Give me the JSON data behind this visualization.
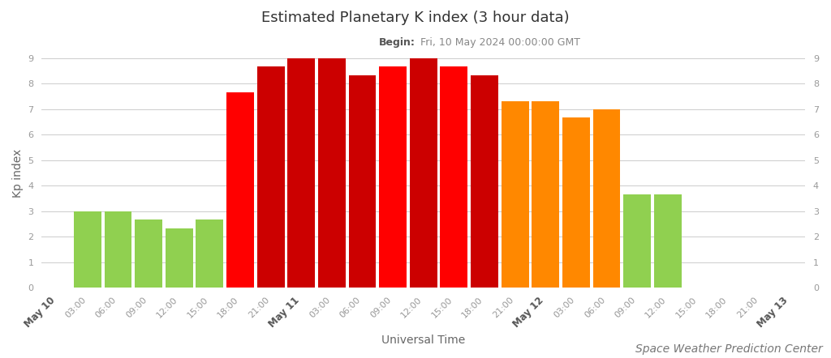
{
  "title": "Estimated Planetary K index (3 hour data)",
  "subtitle_bold": "Begin:",
  "subtitle_rest": " Fri, 10 May 2024 00:00:00 GMT",
  "xlabel": "Universal Time",
  "ylabel": "Kp index",
  "credit": "Space Weather Prediction Center",
  "ylim": [
    0,
    9
  ],
  "yticks": [
    0,
    1,
    2,
    3,
    4,
    5,
    6,
    7,
    8,
    9
  ],
  "bar_values": [
    3.0,
    3.0,
    2.67,
    2.33,
    2.67,
    7.67,
    8.67,
    9.0,
    9.0,
    8.33,
    8.67,
    9.0,
    8.67,
    8.33,
    7.33,
    7.33,
    6.67,
    7.0,
    3.67,
    3.67
  ],
  "bar_positions": [
    1,
    2,
    3,
    4,
    5,
    6,
    7,
    8,
    9,
    10,
    11,
    12,
    13,
    14,
    15,
    16,
    17,
    18,
    19,
    20
  ],
  "bar_colors": [
    "#90d050",
    "#90d050",
    "#90d050",
    "#90d050",
    "#90d050",
    "#ff0000",
    "#cc0000",
    "#cc0000",
    "#cc0000",
    "#cc0000",
    "#ff0000",
    "#cc0000",
    "#ff0000",
    "#cc0000",
    "#ff8800",
    "#ff8800",
    "#ff8800",
    "#ff8800",
    "#90d050",
    "#90d050"
  ],
  "tick_positions": [
    0,
    1,
    2,
    3,
    4,
    5,
    6,
    7,
    8,
    9,
    10,
    11,
    12,
    13,
    14,
    15,
    16,
    17,
    18,
    19,
    20,
    21,
    22,
    23,
    24
  ],
  "tick_labels": [
    "May 10",
    "03:00",
    "06:00",
    "09:00",
    "12:00",
    "15:00",
    "18:00",
    "21:00",
    "May 11",
    "03:00",
    "06:00",
    "09:00",
    "12:00",
    "15:00",
    "18:00",
    "21:00",
    "May 12",
    "03:00",
    "06:00",
    "09:00",
    "12:00",
    "15:00",
    "18:00",
    "21:00",
    "May 13"
  ],
  "bg_color": "#ffffff",
  "grid_color": "#cccccc",
  "title_fontsize": 13,
  "subtitle_fontsize": 9,
  "label_fontsize": 10,
  "tick_fontsize": 8,
  "credit_fontsize": 10
}
